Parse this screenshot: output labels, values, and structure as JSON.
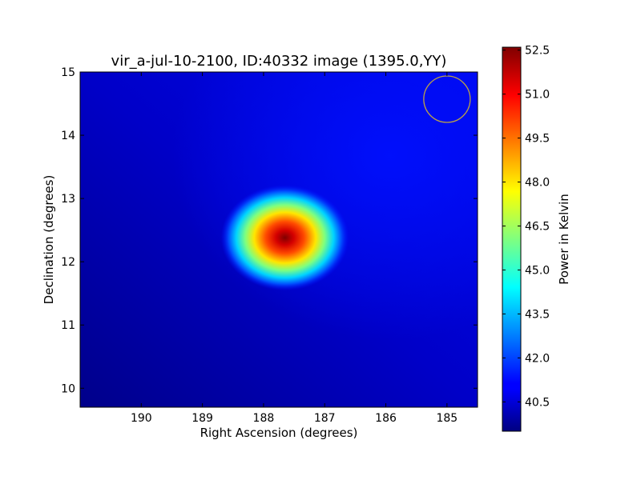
{
  "chart_data": {
    "type": "heatmap",
    "title": "vir_a-jul-10-2100, ID:40332 image (1395.0,YY)",
    "xlabel": "Right Ascension (degrees)",
    "ylabel": "Declination (degrees)",
    "colorbar_label": "Power in Kelvin",
    "xlim": [
      191.0,
      184.5
    ],
    "ylim": [
      9.7,
      15.0
    ],
    "xticks": [
      190,
      189,
      188,
      187,
      186,
      185
    ],
    "yticks": [
      10,
      11,
      12,
      13,
      14,
      15
    ],
    "colorbar_range": [
      39.5,
      52.6
    ],
    "colorbar_ticks": [
      "40.5",
      "42.0",
      "43.5",
      "45.0",
      "46.5",
      "48.0",
      "49.5",
      "51.0",
      "52.5"
    ],
    "colormap": "jet",
    "source_peak": {
      "ra": 187.65,
      "dec": 12.38,
      "value": 52.4
    },
    "background_level": 40.2,
    "beam_marker": {
      "ra": 185.0,
      "dec": 14.57,
      "color": "#b8a04a"
    }
  }
}
